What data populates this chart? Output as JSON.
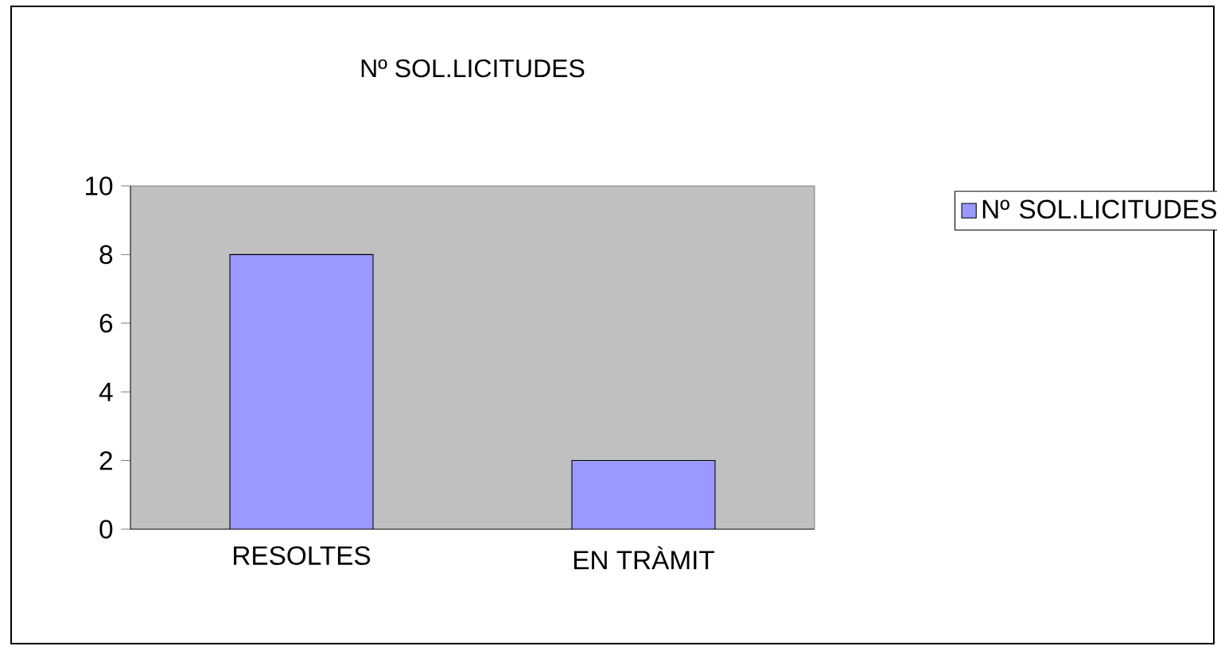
{
  "chart_data": {
    "type": "bar",
    "title": "Nº SOL.LICITUDES",
    "categories": [
      "RESOLTES",
      "EN TRÀMIT"
    ],
    "series": [
      {
        "name": "Nº SOL.LICITUDES",
        "color": "#9999ff",
        "values": [
          8,
          2
        ]
      }
    ],
    "ylim": [
      0,
      10
    ],
    "yticks": [
      0,
      2,
      4,
      6,
      8,
      10
    ],
    "grid": false,
    "legend": "right"
  }
}
